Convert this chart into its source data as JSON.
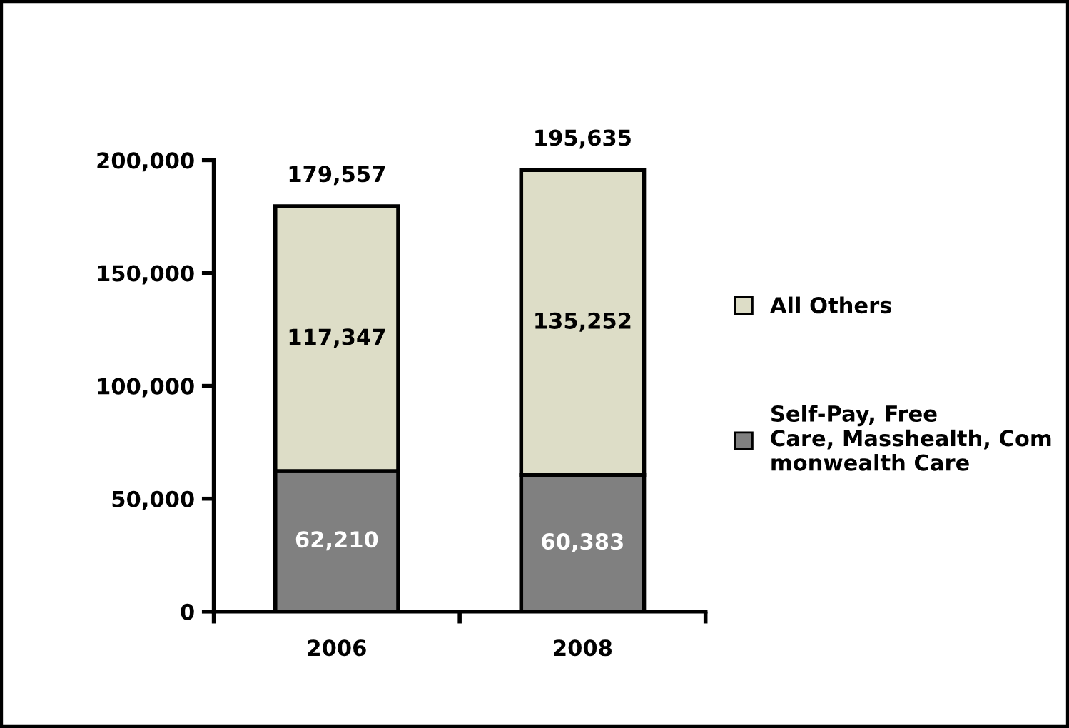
{
  "chart_data": {
    "type": "bar",
    "stacked": true,
    "categories": [
      "2006",
      "2008"
    ],
    "series": [
      {
        "name": "Self-Pay, Free\nCare, Masshealth, Com\nmonwealth Care",
        "color": "#808080",
        "values": [
          62210,
          60383
        ],
        "value_labels": [
          "62,210",
          "60,383"
        ]
      },
      {
        "name": "All Others",
        "color": "#ddddc7",
        "values": [
          117347,
          135252
        ],
        "value_labels": [
          "117,347",
          "135,252"
        ]
      }
    ],
    "totals": [
      "179,557",
      "195,635"
    ],
    "ylim": [
      0,
      200000
    ],
    "yticks": [
      0,
      {
        "value": 50000,
        "label": "50,000"
      },
      {
        "value": 100000,
        "label": "100,000"
      },
      {
        "value": 150000,
        "label": "150,000"
      },
      {
        "value": 200000,
        "label": "200,000"
      }
    ],
    "grid": false,
    "legend": "right"
  }
}
